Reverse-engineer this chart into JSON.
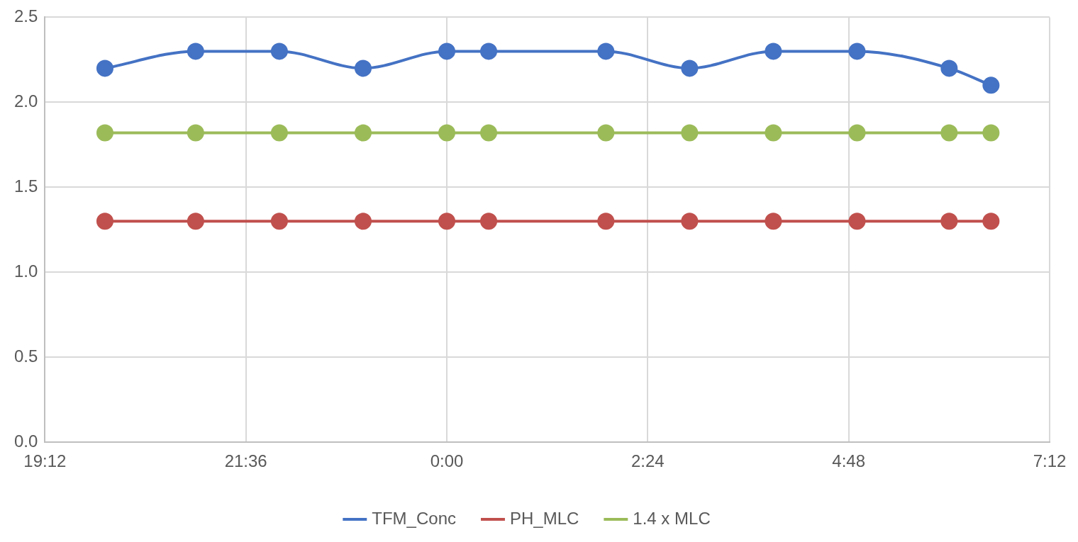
{
  "chart_data": {
    "type": "line",
    "x": [
      "2000-01-01T19:55",
      "2000-01-01T21:00",
      "2000-01-01T22:00",
      "2000-01-01T23:00",
      "2000-01-02T00:00",
      "2000-01-02T00:30",
      "2000-01-02T01:54",
      "2000-01-02T02:54",
      "2000-01-02T03:54",
      "2000-01-02T04:54",
      "2000-01-02T06:00",
      "2000-01-02T06:30"
    ],
    "series": [
      {
        "name": "TFM_Conc",
        "color": "#4472c4",
        "values": [
          2.2,
          2.3,
          2.3,
          2.2,
          2.3,
          2.3,
          2.3,
          2.2,
          2.3,
          2.3,
          2.2,
          2.1
        ]
      },
      {
        "name": "PH_MLC",
        "color": "#c0504d",
        "values": [
          1.3,
          1.3,
          1.3,
          1.3,
          1.3,
          1.3,
          1.3,
          1.3,
          1.3,
          1.3,
          1.3,
          1.3
        ]
      },
      {
        "name": "1.4 x MLC",
        "color": "#9bbb59",
        "values": [
          1.82,
          1.82,
          1.82,
          1.82,
          1.82,
          1.82,
          1.82,
          1.82,
          1.82,
          1.82,
          1.82,
          1.82
        ]
      }
    ],
    "xlim": [
      "2000-01-01T19:12",
      "2000-01-02T07:12"
    ],
    "xticks": [
      {
        "value": "2000-01-01T19:12",
        "label": "19:12"
      },
      {
        "value": "2000-01-01T21:36",
        "label": "21:36"
      },
      {
        "value": "2000-01-02T00:00",
        "label": "0:00"
      },
      {
        "value": "2000-01-02T02:24",
        "label": "2:24"
      },
      {
        "value": "2000-01-02T04:48",
        "label": "4:48"
      },
      {
        "value": "2000-01-02T07:12",
        "label": "7:12"
      }
    ],
    "ylim": [
      0,
      2.5
    ],
    "yticks": [
      {
        "value": 0,
        "label": "0.0"
      },
      {
        "value": 0.5,
        "label": "0.5"
      },
      {
        "value": 1,
        "label": "1.0"
      },
      {
        "value": 1.5,
        "label": "1.5"
      },
      {
        "value": 2,
        "label": "2.0"
      },
      {
        "value": 2.5,
        "label": "2.5"
      }
    ],
    "grid": true,
    "legend": "bottom",
    "marker": "circle",
    "line_style": "solid"
  }
}
